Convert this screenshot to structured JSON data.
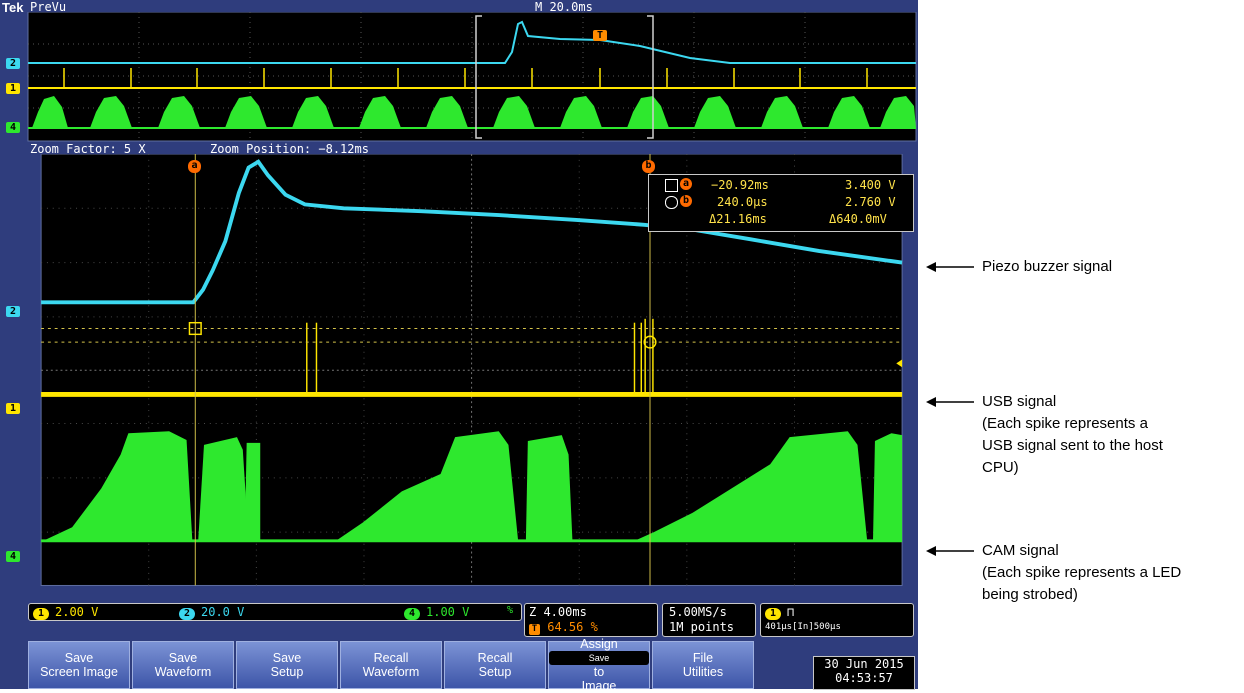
{
  "header": {
    "brand": "Tek",
    "mode": "PreVu",
    "timebase": "M 20.0ms"
  },
  "zoom_info": {
    "factor": "Zoom Factor: 5 X",
    "position": "Zoom Position: −8.12ms"
  },
  "channel_markers": {
    "ch1": "1",
    "ch2": "2",
    "ch4": "4"
  },
  "trigger_marker": "T",
  "cursors": {
    "a": "a",
    "b": "b"
  },
  "readout": {
    "row_a": {
      "time": "−20.92ms",
      "volt": "3.400 V"
    },
    "row_b": {
      "time": "240.0µs",
      "volt": "2.760 V"
    },
    "delta": {
      "time": "Δ21.16ms",
      "volt": "Δ640.0mV"
    }
  },
  "status": {
    "ch1": "2.00 V",
    "ch2": "20.0 V",
    "ch4": "1.00 V",
    "ch4_suffix": "%",
    "zoom_scale": "Z 4.00ms",
    "trigger_pos": "64.56 %",
    "sample_rate": "5.00MS/s",
    "record_length": "1M points",
    "trigger_info": "401µs[In]500µs"
  },
  "menu": [
    {
      "line1": "Save",
      "line2": "Screen Image"
    },
    {
      "line1": "Save",
      "line2": "Waveform"
    },
    {
      "line1": "Save",
      "line2": "Setup"
    },
    {
      "line1": "Recall",
      "line2": "Waveform"
    },
    {
      "line1": "Recall",
      "line2": "Setup"
    },
    {
      "line1": "Assign",
      "chip": "Save",
      "line2": "to",
      "line3": "Image"
    },
    {
      "line1": "File",
      "line2": "Utilities"
    }
  ],
  "clock": {
    "date": "30 Jun 2015",
    "time": "04:53:57"
  },
  "annotations": {
    "piezo": "Piezo buzzer signal",
    "usb_title": "USB signal",
    "usb_l1": "(Each spike represents a",
    "usb_l2": "USB signal sent to the host",
    "usb_l3": "CPU)",
    "cam_title": "CAM signal",
    "cam_l1": "(Each spike represents a LED",
    "cam_l2": "being strobed)"
  },
  "colors": {
    "ch1": "#ffe600",
    "ch2": "#3cd8f0",
    "ch4": "#2ee82e",
    "cursor": "#ff6a00",
    "bezel": "#2f3d7d"
  }
}
